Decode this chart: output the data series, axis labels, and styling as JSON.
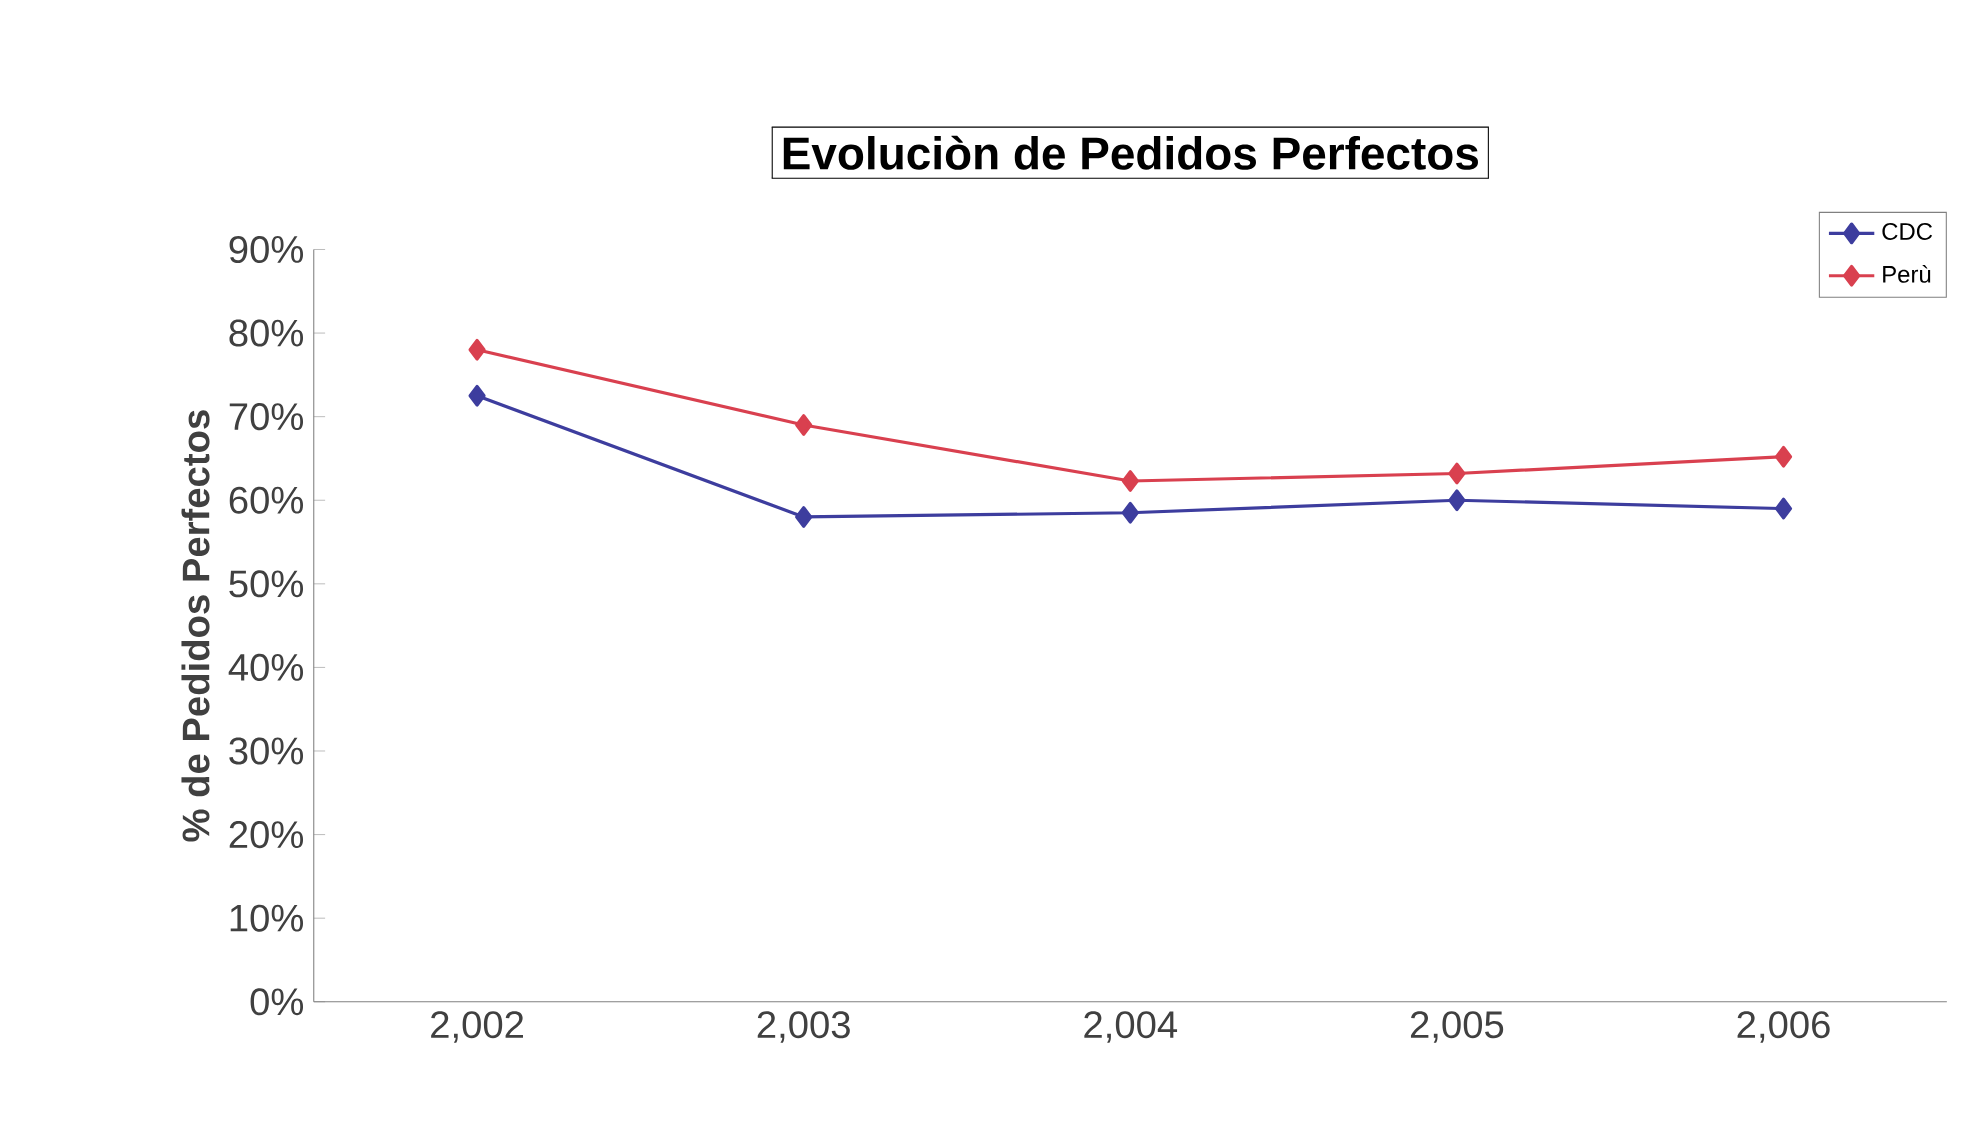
{
  "chart_data": {
    "type": "line",
    "title": "Evoluciòn de Pedidos Perfectos",
    "ylabel": "% de Pedidos Perfectos",
    "categories": [
      "2,002",
      "2,003",
      "2,004",
      "2,005",
      "2,006"
    ],
    "series": [
      {
        "name": "CDC",
        "color": "#3d3d9e",
        "values": [
          72.5,
          58,
          58.5,
          60,
          59
        ]
      },
      {
        "name": "Perù",
        "color": "#d9404f",
        "values": [
          78,
          69,
          62.3,
          63.2,
          65.2
        ]
      }
    ],
    "ylim": [
      0,
      90
    ],
    "yticks": [
      {
        "value": 0,
        "label": "0%"
      },
      {
        "value": 10,
        "label": "10%"
      },
      {
        "value": 20,
        "label": "20%"
      },
      {
        "value": 30,
        "label": "30%"
      },
      {
        "value": 40,
        "label": "40%"
      },
      {
        "value": 50,
        "label": "50%"
      },
      {
        "value": 60,
        "label": "60%"
      },
      {
        "value": 70,
        "label": "70%"
      },
      {
        "value": 80,
        "label": "80%"
      },
      {
        "value": 90,
        "label": "90%"
      }
    ],
    "marker": "diamond",
    "legend": "top right",
    "grid": false
  }
}
